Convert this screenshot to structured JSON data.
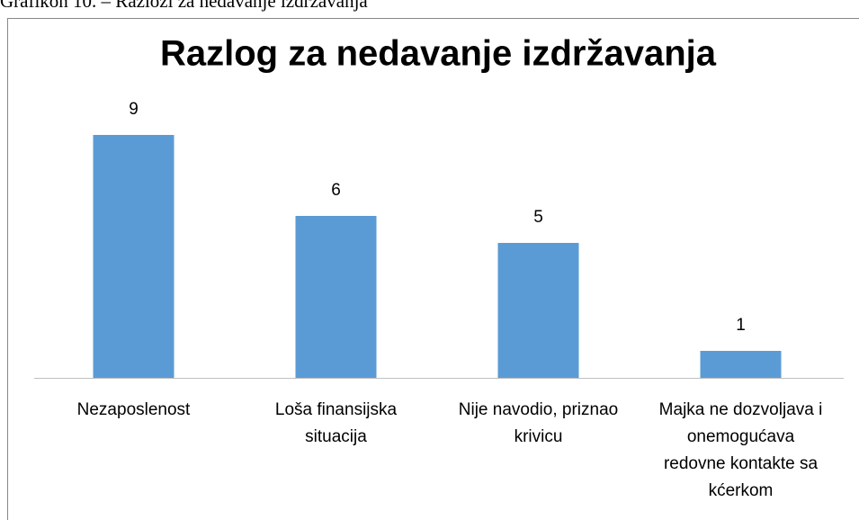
{
  "caption": "Grafikon 10. – Razlozi za nedavanje izdržavanja",
  "chart_data": {
    "type": "bar",
    "title": "Razlog za nedavanje izdržavanja",
    "categories": [
      "Nezaposlenost",
      "Loša finansijska situacija",
      "Nije navodio, priznao krivicu",
      "Majka ne dozvoljava i onemogućava redovne kontakte sa kćerkom"
    ],
    "values": [
      9,
      6,
      5,
      1
    ],
    "color": "#5b9bd5"
  }
}
